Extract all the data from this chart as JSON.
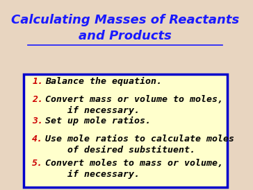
{
  "title_line1": "Calculating Masses of Reactants",
  "title_line2": "and Products",
  "title_color": "#1a1aff",
  "title_fontsize": 13,
  "background_color": "#e8d5c0",
  "box_bg_color": "#ffffcc",
  "box_border_color": "#0000cc",
  "number_color": "#cc0000",
  "text_color": "#000000",
  "items": [
    [
      "1.",
      "Balance the equation."
    ],
    [
      "2.",
      "Convert mass or volume to moles,\n    if necessary."
    ],
    [
      "3.",
      "Set up mole ratios."
    ],
    [
      "4.",
      "Use mole ratios to calculate moles\n    of desired substituent."
    ],
    [
      "5.",
      "Convert moles to mass or volume,\n    if necessary."
    ]
  ],
  "item_fontsize": 9.5
}
